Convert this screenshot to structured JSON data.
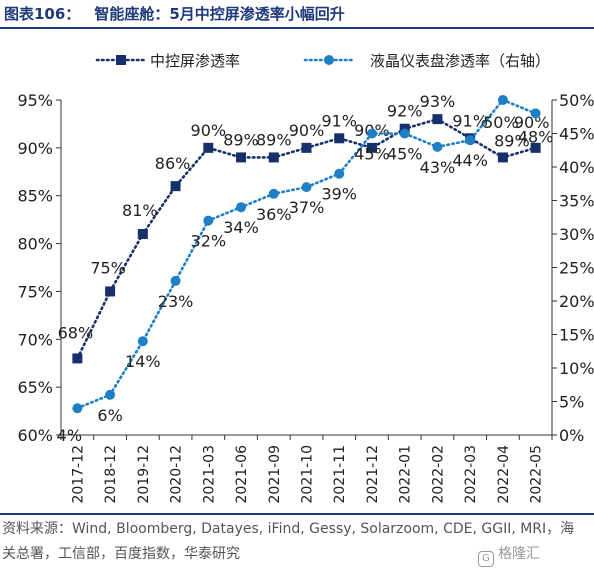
{
  "figure": {
    "number": "图表106：",
    "title": "智能座舱：5月中控屏渗透率小幅回升"
  },
  "chart_data": {
    "type": "line",
    "categories": [
      "2017-12",
      "2018-12",
      "2019-12",
      "2020-12",
      "2021-03",
      "2021-06",
      "2021-09",
      "2021-10",
      "2021-11",
      "2021-12",
      "2022-01",
      "2022-02",
      "2022-03",
      "2022-04",
      "2022-05"
    ],
    "series": [
      {
        "name": "中控屏渗透率",
        "axis": "left",
        "values": [
          68,
          75,
          81,
          86,
          90,
          89,
          89,
          90,
          91,
          90,
          92,
          93,
          91,
          89,
          90
        ],
        "labels": [
          "68%",
          "75%",
          "81%",
          "86%",
          "90%",
          "89%",
          "89%",
          "90%",
          "91%",
          "90%",
          "92%",
          "93%",
          "91%",
          "89%",
          "90%"
        ],
        "color": "#17306b",
        "line_style": "dotted",
        "marker": "square"
      },
      {
        "name": "液晶仪表盘渗透率（右轴）",
        "axis": "right",
        "values": [
          4,
          6,
          14,
          23,
          32,
          34,
          36,
          37,
          39,
          45,
          45,
          43,
          44,
          50,
          48
        ],
        "labels": [
          "4%",
          "6%",
          "14%",
          "23%",
          "32%",
          "34%",
          "36%",
          "37%",
          "39%",
          "45%",
          "45%",
          "43%",
          "44%",
          "50%",
          "48%"
        ],
        "color": "#1f7fc4",
        "line_style": "dotted",
        "marker": "circle"
      }
    ],
    "y_left": {
      "min": 60,
      "max": 95,
      "step": 5,
      "tick_labels": [
        "60%",
        "65%",
        "70%",
        "75%",
        "80%",
        "85%",
        "90%",
        "95%"
      ]
    },
    "y_right": {
      "min": 0,
      "max": 50,
      "step": 5,
      "tick_labels": [
        "0%",
        "5%",
        "10%",
        "15%",
        "20%",
        "25%",
        "30%",
        "35%",
        "40%",
        "45%",
        "50%"
      ]
    },
    "grid": false,
    "legend_position": "top"
  },
  "source": {
    "text": "资料来源：Wind, Bloomberg, Datayes, iFind, Gessy, Solarzoom, CDE, GGII, MRI，海关总署，工信部，百度指数，华泰研究"
  },
  "watermark": {
    "text": "格隆汇"
  }
}
